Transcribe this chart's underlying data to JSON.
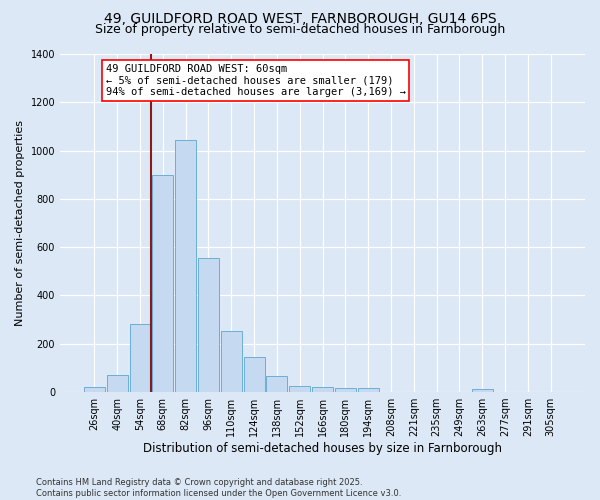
{
  "title1": "49, GUILDFORD ROAD WEST, FARNBOROUGH, GU14 6PS",
  "title2": "Size of property relative to semi-detached houses in Farnborough",
  "xlabel": "Distribution of semi-detached houses by size in Farnborough",
  "ylabel": "Number of semi-detached properties",
  "categories": [
    "26sqm",
    "40sqm",
    "54sqm",
    "68sqm",
    "82sqm",
    "96sqm",
    "110sqm",
    "124sqm",
    "138sqm",
    "152sqm",
    "166sqm",
    "180sqm",
    "194sqm",
    "208sqm",
    "221sqm",
    "235sqm",
    "249sqm",
    "263sqm",
    "277sqm",
    "291sqm",
    "305sqm"
  ],
  "values": [
    20,
    70,
    280,
    900,
    1045,
    555,
    255,
    145,
    65,
    27,
    22,
    15,
    15,
    0,
    0,
    0,
    0,
    12,
    0,
    0,
    0
  ],
  "bar_color": "#c5d9f0",
  "bar_edge_color": "#6baed6",
  "annotation_text": "49 GUILDFORD ROAD WEST: 60sqm\n← 5% of semi-detached houses are smaller (179)\n94% of semi-detached houses are larger (3,169) →",
  "vline_color": "#8b1a1a",
  "vline_x_index": 2.5,
  "bg_color": "#dce8f5",
  "ylim_max": 1400,
  "yticks": [
    0,
    200,
    400,
    600,
    800,
    1000,
    1200,
    1400
  ],
  "footer_text": "Contains HM Land Registry data © Crown copyright and database right 2025.\nContains public sector information licensed under the Open Government Licence v3.0.",
  "title1_fontsize": 10,
  "title2_fontsize": 9,
  "ylabel_fontsize": 8,
  "xlabel_fontsize": 8.5,
  "tick_fontsize": 7,
  "annot_fontsize": 7.5,
  "footer_fontsize": 6
}
